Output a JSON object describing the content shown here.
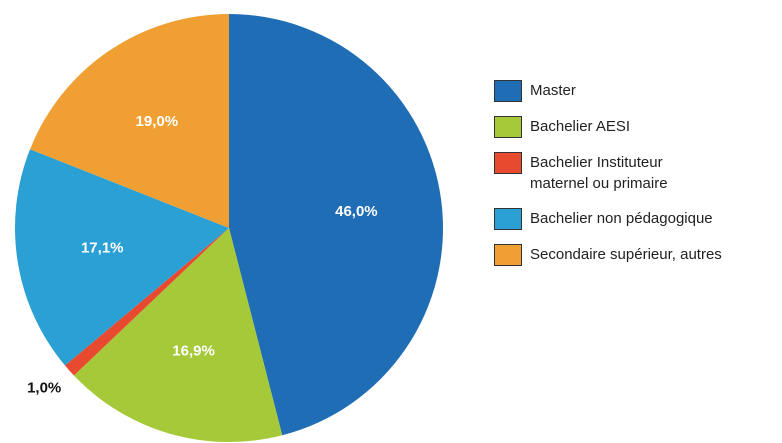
{
  "chart_data": {
    "type": "pie",
    "categories": [
      "Master",
      "Bachelier AESI",
      "Bachelier Instituteur maternel ou primaire",
      "Bachelier non pédagogique",
      "Secondaire supérieur, autres"
    ],
    "values": [
      46.0,
      16.9,
      1.0,
      17.1,
      19.0
    ],
    "value_labels": [
      "46,0%",
      "16,9%",
      "1,0%",
      "17,1%",
      "19,0%"
    ],
    "colors": [
      "#1f6db5",
      "#a6c93a",
      "#e84a2f",
      "#2aa0d4",
      "#f0a033"
    ],
    "legend": "right"
  }
}
